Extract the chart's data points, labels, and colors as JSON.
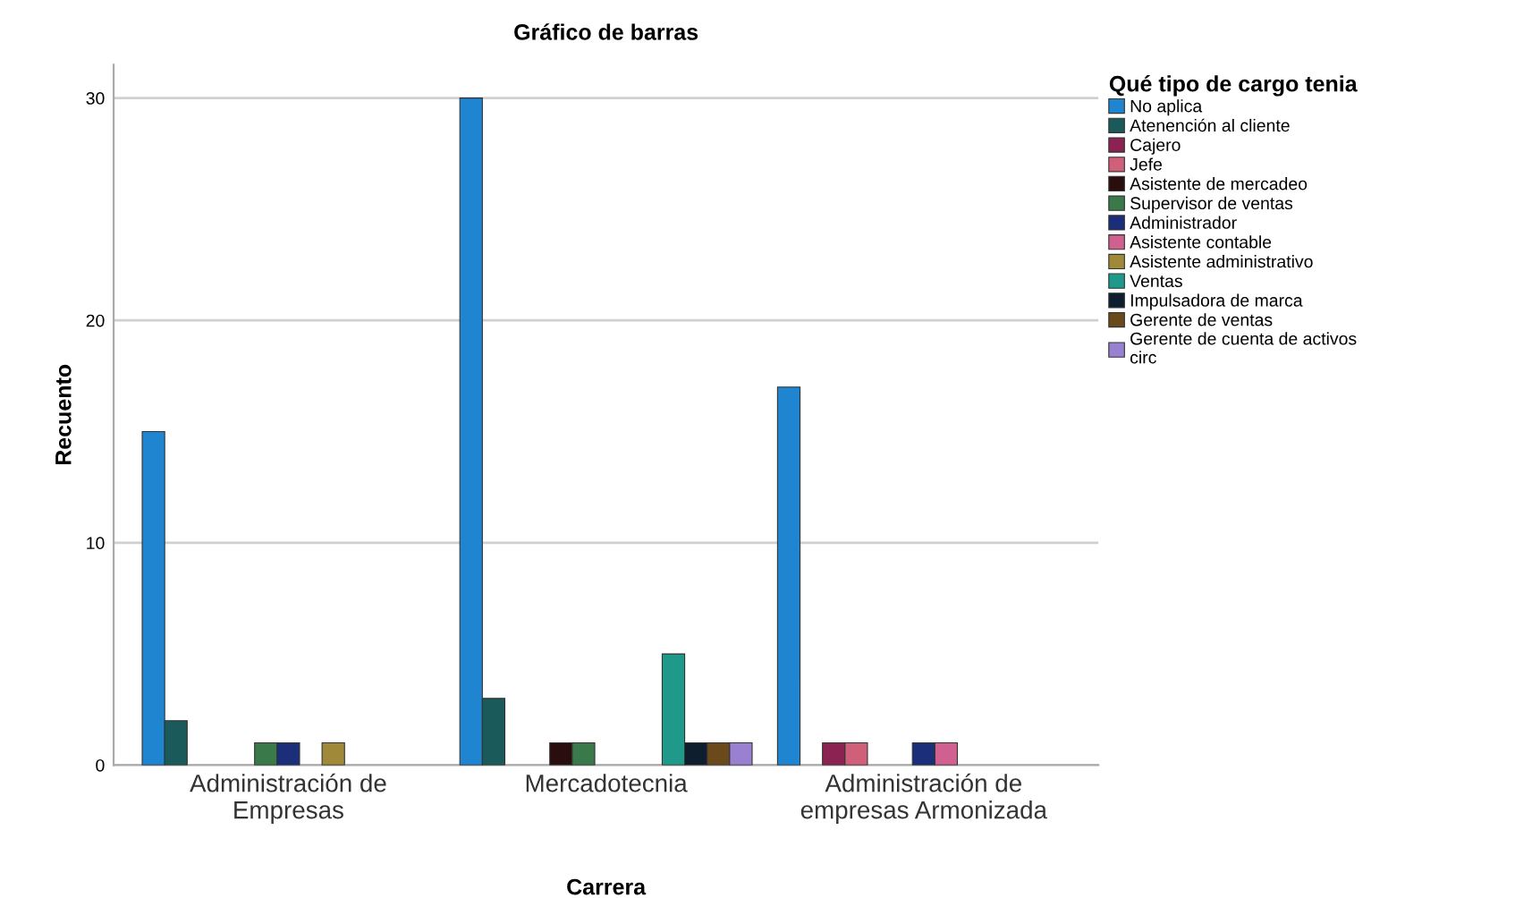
{
  "chart_data": {
    "type": "bar",
    "title": "Gráfico de barras",
    "xlabel": "Carrera",
    "ylabel": "Recuento",
    "legend_title": "Qué tipo de cargo tenia",
    "categories": [
      "Administración de\nEmpresas",
      "Mercadotecnia",
      "Administración de\nempresas Armonizada"
    ],
    "series": [
      {
        "name": "No aplica",
        "color": "#1f85d0",
        "values": [
          15,
          30,
          17
        ]
      },
      {
        "name": "Atenención al cliente",
        "color": "#1a5a5a",
        "values": [
          2,
          3,
          null
        ]
      },
      {
        "name": "Cajero",
        "color": "#8b2252",
        "values": [
          null,
          null,
          1
        ]
      },
      {
        "name": "Jefe",
        "color": "#d0607a",
        "values": [
          null,
          null,
          1
        ]
      },
      {
        "name": "Asistente de mercadeo",
        "color": "#2a0e0e",
        "values": [
          null,
          1,
          null
        ]
      },
      {
        "name": "Supervisor de ventas",
        "color": "#3a7a4a",
        "values": [
          1,
          1,
          null
        ]
      },
      {
        "name": "Administrador",
        "color": "#1a2e7a",
        "values": [
          1,
          null,
          1
        ]
      },
      {
        "name": "Asistente contable",
        "color": "#d06090",
        "values": [
          null,
          null,
          1
        ]
      },
      {
        "name": "Asistente administrativo",
        "color": "#a08a3a",
        "values": [
          1,
          null,
          null
        ]
      },
      {
        "name": "Ventas",
        "color": "#1f9a8a",
        "values": [
          null,
          5,
          null
        ]
      },
      {
        "name": "Impulsadora de marca",
        "color": "#0e1e2e",
        "values": [
          null,
          1,
          null
        ]
      },
      {
        "name": "Gerente de ventas",
        "color": "#6a4a1a",
        "values": [
          null,
          1,
          null
        ]
      },
      {
        "name": "Gerente de cuenta de activos\ncirc",
        "color": "#9a80d0",
        "values": [
          null,
          1,
          null
        ]
      }
    ],
    "ylim": [
      0,
      31.5
    ],
    "yticks": [
      0,
      10,
      20,
      30
    ],
    "grid": "y",
    "legend": "top right"
  }
}
